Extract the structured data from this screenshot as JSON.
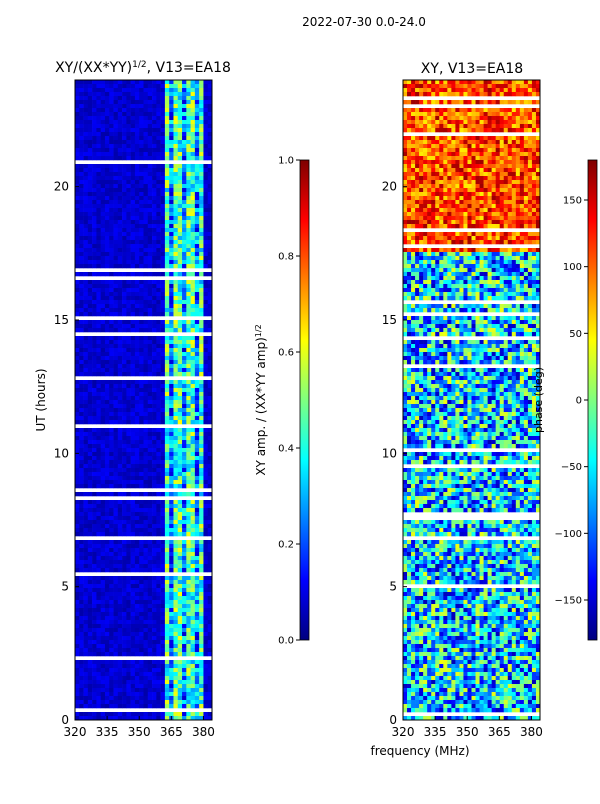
{
  "suptitle": "2022-07-30 0.0-24.0",
  "shared_xlabel": "frequency (MHz)",
  "colormap_stops": [
    "#00007f",
    "#0000ff",
    "#007fff",
    "#00ffff",
    "#7fff7f",
    "#ffff00",
    "#ff7f00",
    "#ff0000",
    "#7f0000"
  ],
  "chart_data": [
    {
      "type": "heatmap",
      "title_main": "XY/(XX*YY)",
      "title_sup": "1/2",
      "title_tail": ", V13=EA18",
      "ylabel": "UT (hours)",
      "xlim": [
        320,
        384
      ],
      "ylim": [
        0,
        24
      ],
      "xticks": [
        "320",
        "335",
        "350",
        "365",
        "380"
      ],
      "xtick_values": [
        320,
        335,
        350,
        365,
        380
      ],
      "yticks": [
        "0",
        "5",
        "10",
        "15",
        "20"
      ],
      "ytick_values": [
        0,
        5,
        10,
        15,
        20
      ],
      "colorbar": {
        "label_main": "XY amp. / (XX*YY amp)",
        "label_sup": "1/2",
        "range": [
          0,
          1
        ],
        "ticks": [
          "0.0",
          "0.2",
          "0.4",
          "0.6",
          "0.8",
          "1.0"
        ],
        "tick_values": [
          0,
          0.2,
          0.4,
          0.6,
          0.8,
          1.0
        ]
      },
      "features": {
        "background_value": 0.08,
        "high_band_MHz": [
          362,
          380
        ],
        "high_band_value": 0.45,
        "data_gaps_UT": [
          [
            17.9,
            17.4
          ],
          [
            8.4,
            8.2
          ],
          [
            0.6,
            0.4
          ],
          [
            22.0,
            21.8
          ],
          [
            12.5,
            12.3
          ]
        ]
      }
    },
    {
      "type": "heatmap",
      "title_main": "XY, V13=EA18",
      "ylabel": "",
      "xlim": [
        320,
        384
      ],
      "ylim": [
        0,
        24
      ],
      "xticks": [
        "320",
        "335",
        "350",
        "365",
        "380"
      ],
      "xtick_values": [
        320,
        335,
        350,
        365,
        380
      ],
      "yticks": [
        "0",
        "5",
        "10",
        "15",
        "20"
      ],
      "ytick_values": [
        0,
        5,
        10,
        15,
        20
      ],
      "colorbar": {
        "label_main": "phase (deg)",
        "range": [
          -180,
          180
        ],
        "ticks": [
          "−150",
          "−100",
          "−50",
          "0",
          "50",
          "100",
          "150"
        ],
        "tick_values": [
          -150,
          -100,
          -50,
          0,
          50,
          100,
          150
        ]
      },
      "features": {
        "phase_upper_band_deg": 110,
        "phase_lower_band_deg": -60
      }
    }
  ]
}
